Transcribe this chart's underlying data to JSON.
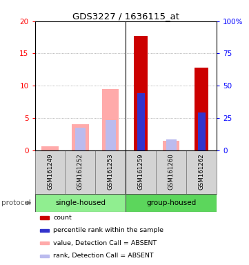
{
  "title": "GDS3227 / 1636115_at",
  "samples": [
    "GSM161249",
    "GSM161252",
    "GSM161253",
    "GSM161259",
    "GSM161260",
    "GSM161262"
  ],
  "red_values": [
    0.0,
    0.0,
    0.0,
    17.7,
    0.0,
    12.8
  ],
  "blue_values": [
    0.0,
    0.0,
    0.0,
    8.9,
    0.0,
    5.9
  ],
  "pink_values": [
    0.65,
    4.0,
    9.5,
    0.0,
    1.5,
    0.0
  ],
  "lavender_values": [
    0.0,
    3.5,
    4.7,
    0.0,
    1.7,
    0.0
  ],
  "ylim_left": [
    0,
    20
  ],
  "ylim_right": [
    0,
    100
  ],
  "yticks_left": [
    0,
    5,
    10,
    15,
    20
  ],
  "yticks_right": [
    0,
    25,
    50,
    75,
    100
  ],
  "ytick_labels_left": [
    "0",
    "5",
    "10",
    "15",
    "20"
  ],
  "ytick_labels_right": [
    "0",
    "25",
    "50",
    "75",
    "100%"
  ],
  "red_color": "#cc0000",
  "blue_color": "#3333cc",
  "pink_color": "#ffaaaa",
  "lavender_color": "#bbbbee",
  "legend_items": [
    {
      "color": "#cc0000",
      "label": "count"
    },
    {
      "color": "#3333cc",
      "label": "percentile rank within the sample"
    },
    {
      "color": "#ffaaaa",
      "label": "value, Detection Call = ABSENT"
    },
    {
      "color": "#bbbbee",
      "label": "rank, Detection Call = ABSENT"
    }
  ],
  "protocol_label": "protocol",
  "group_label_single": "single-housed",
  "group_label_group": "group-housed",
  "group_color_single": "#90EE90",
  "group_color_group": "#5cd65c",
  "sample_bg": "#d3d3d3"
}
